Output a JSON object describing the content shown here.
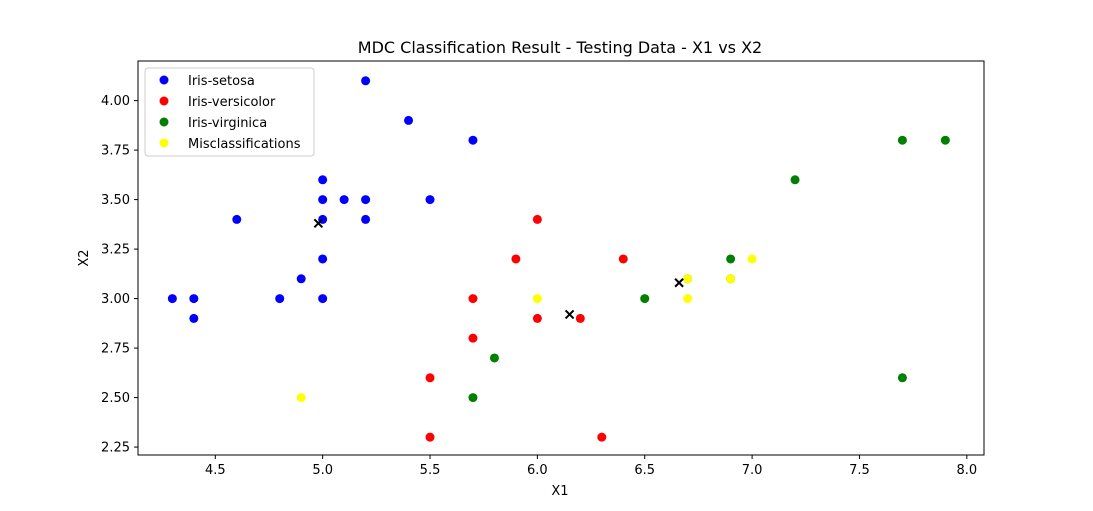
{
  "chart_data": {
    "type": "scatter",
    "title": "MDC Classification Result - Testing Data - X1 vs X2",
    "xlabel": "X1",
    "ylabel": "X2",
    "xlim": [
      4.14,
      8.08
    ],
    "ylim": [
      2.21,
      4.2
    ],
    "xticks": [
      "4.5",
      "5.0",
      "5.5",
      "6.0",
      "6.5",
      "7.0",
      "7.5",
      "8.0"
    ],
    "yticks": [
      "2.25",
      "2.50",
      "2.75",
      "3.00",
      "3.25",
      "3.50",
      "3.75",
      "4.00"
    ],
    "grid": false,
    "legend_position": "top-left",
    "series": [
      {
        "name": "Iris-setosa",
        "color": "#0000ff",
        "points": [
          [
            5.2,
            4.1
          ],
          [
            5.4,
            3.9
          ],
          [
            5.7,
            3.8
          ],
          [
            5.0,
            3.6
          ],
          [
            5.0,
            3.5
          ],
          [
            5.1,
            3.5
          ],
          [
            5.2,
            3.5
          ],
          [
            5.5,
            3.5
          ],
          [
            4.6,
            3.4
          ],
          [
            5.0,
            3.4
          ],
          [
            5.2,
            3.4
          ],
          [
            5.0,
            3.2
          ],
          [
            4.9,
            3.1
          ],
          [
            4.3,
            3.0
          ],
          [
            4.4,
            3.0
          ],
          [
            4.8,
            3.0
          ],
          [
            5.0,
            3.0
          ],
          [
            4.4,
            2.9
          ]
        ]
      },
      {
        "name": "Iris-versicolor",
        "color": "#ff0000",
        "points": [
          [
            6.0,
            3.4
          ],
          [
            5.9,
            3.2
          ],
          [
            6.4,
            3.2
          ],
          [
            5.7,
            3.0
          ],
          [
            6.0,
            2.9
          ],
          [
            6.2,
            2.9
          ],
          [
            5.7,
            2.8
          ],
          [
            5.5,
            2.6
          ],
          [
            5.5,
            2.3
          ],
          [
            6.3,
            2.3
          ]
        ]
      },
      {
        "name": "Iris-virginica",
        "color": "#008000",
        "points": [
          [
            7.7,
            3.8
          ],
          [
            7.9,
            3.8
          ],
          [
            7.2,
            3.6
          ],
          [
            6.9,
            3.2
          ],
          [
            6.7,
            3.1
          ],
          [
            6.9,
            3.1
          ],
          [
            6.5,
            3.0
          ],
          [
            5.8,
            2.7
          ],
          [
            5.7,
            2.5
          ],
          [
            7.7,
            2.6
          ]
        ]
      },
      {
        "name": "Misclassifications",
        "color": "#ffff00",
        "points": [
          [
            6.7,
            3.1
          ],
          [
            6.9,
            3.1
          ],
          [
            7.0,
            3.2
          ],
          [
            6.0,
            3.0
          ],
          [
            6.7,
            3.0
          ],
          [
            4.9,
            2.5
          ]
        ]
      }
    ],
    "centroids": {
      "color": "#000000",
      "marker": "x",
      "points": [
        [
          4.98,
          3.38
        ],
        [
          6.15,
          2.92
        ],
        [
          6.66,
          3.08
        ]
      ]
    }
  }
}
